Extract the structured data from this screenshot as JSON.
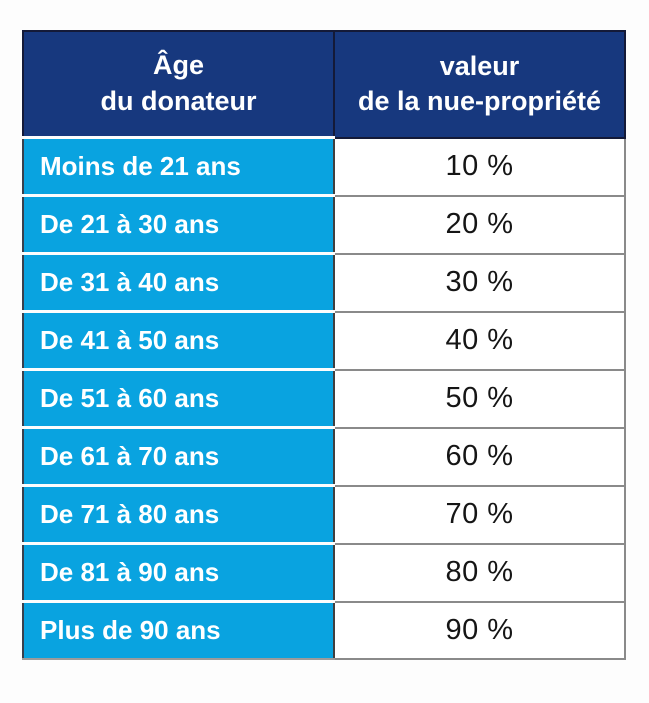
{
  "chart_data": {
    "type": "table",
    "header": {
      "age": [
        "Âge",
        "du donateur"
      ],
      "value": [
        "valeur",
        "de la nue-propriété"
      ]
    },
    "rows": [
      [
        "Moins de 21 ans",
        "10 %"
      ],
      [
        "De 21 à 30 ans",
        "20 %"
      ],
      [
        "De 31 à 40 ans",
        "30 %"
      ],
      [
        "De 41 à 50 ans",
        "40 %"
      ],
      [
        "De 51 à 60 ans",
        "50 %"
      ],
      [
        "De 61 à 70 ans",
        "60 %"
      ],
      [
        "De 71 à 80 ans",
        "70 %"
      ],
      [
        "De 81 à 90 ans",
        "80 %"
      ],
      [
        "Plus de 90 ans",
        "90 %"
      ]
    ],
    "values_percent": [
      10,
      20,
      30,
      40,
      50,
      60,
      70,
      80,
      90
    ],
    "layout_hints": {
      "columns": 2,
      "header_rows": 1,
      "body_rows": 9
    }
  },
  "colors": {
    "header_bg": "#17387e",
    "header_text": "#ffffff",
    "age_cell_bg": "#09a3e0",
    "age_cell_text": "#ffffff",
    "value_cell_bg": "#ffffff",
    "value_cell_text": "#151515",
    "outer_dark_border": "#141a38",
    "column_divider": "#3f3f3f",
    "value_grid_line": "#8a8a8a",
    "page_background": "#fdfdfd"
  }
}
